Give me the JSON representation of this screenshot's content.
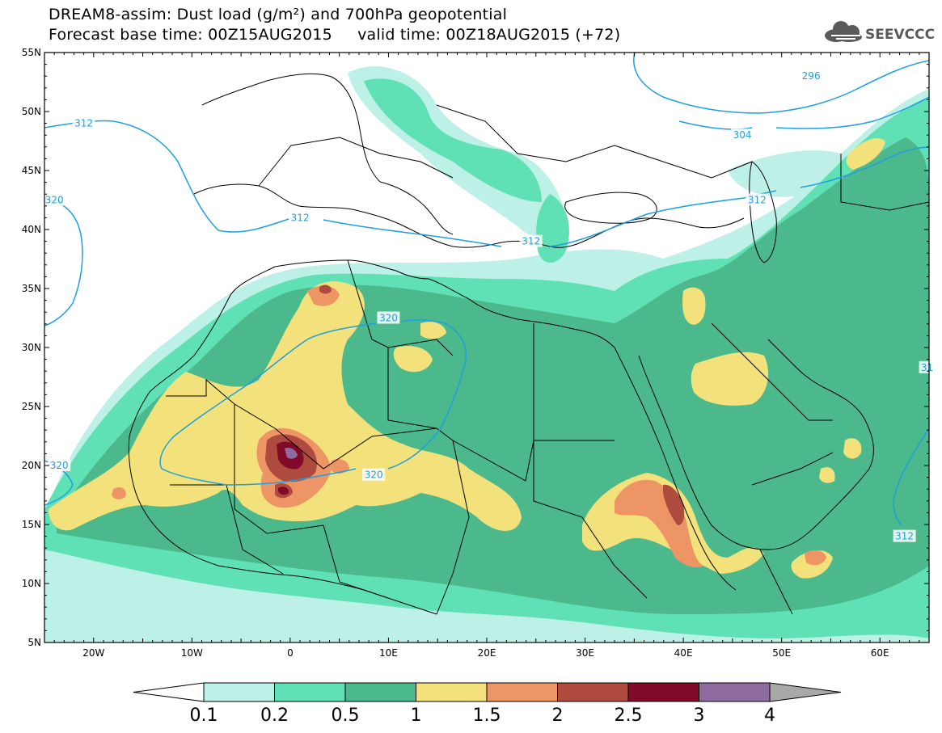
{
  "header": {
    "title_line1": "DREAM8-assim: Dust load (g/m²) and 700hPa geopotential",
    "title_line2": "Forecast base time: 00Z15AUG2015     valid time: 00Z18AUG2015 (+72)"
  },
  "logo": {
    "text": "SEEVCCC",
    "icon": "cloud-icon"
  },
  "axes": {
    "lat_labels": [
      "55N",
      "50N",
      "45N",
      "40N",
      "35N",
      "30N",
      "25N",
      "20N",
      "15N",
      "10N",
      "5N"
    ],
    "lon_labels": [
      "20W",
      "10W",
      "0",
      "10E",
      "20E",
      "30E",
      "40E",
      "50E",
      "60E"
    ],
    "lat_range": [
      5,
      55
    ],
    "lon_range": [
      -25,
      65
    ]
  },
  "contours": {
    "color": "#1E9FE0",
    "labels": [
      {
        "text": "296",
        "lon": 53,
        "lat": 53
      },
      {
        "text": "304",
        "lon": 46,
        "lat": 48
      },
      {
        "text": "312",
        "lon": -21,
        "lat": 49
      },
      {
        "text": "312",
        "lon": 1,
        "lat": 41
      },
      {
        "text": "312",
        "lon": 24.5,
        "lat": 39
      },
      {
        "text": "312",
        "lon": 47.5,
        "lat": 42.5
      },
      {
        "text": "312",
        "lon": 62.5,
        "lat": 14
      },
      {
        "text": "31",
        "lon": 64.8,
        "lat": 28.3
      },
      {
        "text": "320",
        "lon": -24,
        "lat": 42.5
      },
      {
        "text": "320",
        "lon": 10,
        "lat": 32.5
      },
      {
        "text": "320",
        "lon": 8.5,
        "lat": 19.2
      },
      {
        "text": "320",
        "lon": -23.5,
        "lat": 20
      }
    ]
  },
  "colorbar": {
    "labels": [
      "0.1",
      "0.2",
      "0.5",
      "1",
      "1.5",
      "2",
      "2.5",
      "3",
      "4"
    ],
    "bins": [
      {
        "from": "0.1",
        "to": "0.2",
        "color": "#BDF0E6"
      },
      {
        "from": "0.2",
        "to": "0.5",
        "color": "#5FE0B5"
      },
      {
        "from": "0.5",
        "to": "1",
        "color": "#4CB98C"
      },
      {
        "from": "1",
        "to": "1.5",
        "color": "#F3E27C"
      },
      {
        "from": "1.5",
        "to": "2",
        "color": "#ED9565"
      },
      {
        "from": "2",
        "to": "2.5",
        "color": "#AE4A3E"
      },
      {
        "from": "2.5",
        "to": "3",
        "color": "#800A27"
      },
      {
        "from": "3",
        "to": "4",
        "color": "#8E6BA1"
      }
    ],
    "under_color": "#FFFFFF",
    "over_color": "#A8A8A8"
  }
}
